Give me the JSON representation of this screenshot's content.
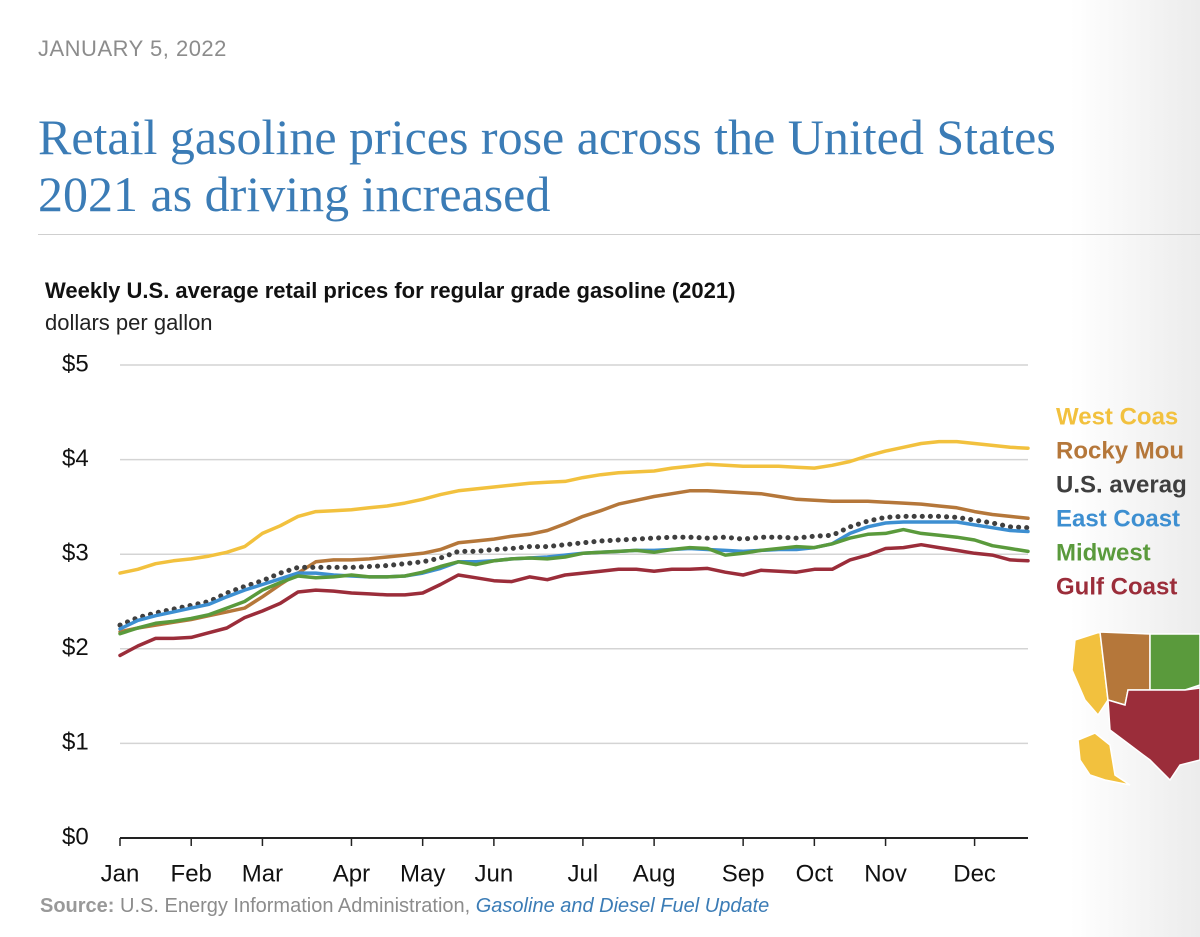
{
  "header": {
    "date": "JANUARY 5, 2022",
    "title_lines": [
      "Retail gasoline prices rose across the United States",
      "2021 as driving increased"
    ]
  },
  "chart_data": {
    "type": "line",
    "title": "Weekly U.S. average retail prices for regular grade gasoline (2021)",
    "subtitle": "dollars per gallon",
    "categories": [
      "Jan",
      null,
      null,
      null,
      "Feb",
      null,
      null,
      null,
      "Mar",
      null,
      null,
      null,
      null,
      "Apr",
      null,
      null,
      null,
      "May",
      null,
      null,
      null,
      "Jun",
      null,
      null,
      null,
      null,
      "Jul",
      null,
      null,
      null,
      "Aug",
      null,
      null,
      null,
      null,
      "Sep",
      null,
      null,
      null,
      "Oct",
      null,
      null,
      null,
      "Nov",
      null,
      null,
      null,
      null,
      "Dec",
      null,
      null,
      null
    ],
    "ylim": [
      0,
      5
    ],
    "yticks": [
      {
        "value": 0,
        "label": "$0"
      },
      {
        "value": 1,
        "label": "$1"
      },
      {
        "value": 2,
        "label": "$2"
      },
      {
        "value": 3,
        "label": "$3"
      },
      {
        "value": 4,
        "label": "$4"
      },
      {
        "value": 5,
        "label": "$5"
      }
    ],
    "grid": true,
    "series": [
      {
        "name": "West Coas",
        "color": "#f2c13e",
        "values": [
          2.8,
          2.84,
          2.9,
          2.93,
          2.95,
          2.98,
          3.02,
          3.08,
          3.22,
          3.3,
          3.4,
          3.45,
          3.46,
          3.47,
          3.49,
          3.51,
          3.54,
          3.58,
          3.63,
          3.67,
          3.69,
          3.71,
          3.73,
          3.75,
          3.76,
          3.77,
          3.81,
          3.84,
          3.86,
          3.87,
          3.88,
          3.91,
          3.93,
          3.95,
          3.94,
          3.93,
          3.93,
          3.93,
          3.92,
          3.91,
          3.94,
          3.98,
          4.04,
          4.09,
          4.13,
          4.17,
          4.19,
          4.19,
          4.17,
          4.15,
          4.13,
          4.12
        ]
      },
      {
        "name": "Rocky Mou",
        "color": "#b5773a",
        "values": [
          2.18,
          2.22,
          2.25,
          2.28,
          2.31,
          2.35,
          2.39,
          2.43,
          2.55,
          2.68,
          2.8,
          2.92,
          2.94,
          2.94,
          2.95,
          2.97,
          2.99,
          3.01,
          3.05,
          3.12,
          3.14,
          3.16,
          3.19,
          3.21,
          3.25,
          3.32,
          3.4,
          3.46,
          3.53,
          3.57,
          3.61,
          3.64,
          3.67,
          3.67,
          3.66,
          3.65,
          3.64,
          3.61,
          3.58,
          3.57,
          3.56,
          3.56,
          3.56,
          3.55,
          3.54,
          3.53,
          3.51,
          3.49,
          3.45,
          3.42,
          3.4,
          3.38
        ]
      },
      {
        "name": "U.S. averag",
        "color": "#3f3f3f",
        "dashed": true,
        "values": [
          2.25,
          2.33,
          2.38,
          2.42,
          2.46,
          2.5,
          2.59,
          2.66,
          2.72,
          2.8,
          2.86,
          2.86,
          2.86,
          2.86,
          2.87,
          2.88,
          2.9,
          2.92,
          2.96,
          3.03,
          3.03,
          3.05,
          3.06,
          3.08,
          3.08,
          3.1,
          3.12,
          3.14,
          3.15,
          3.16,
          3.17,
          3.18,
          3.18,
          3.17,
          3.18,
          3.16,
          3.18,
          3.18,
          3.17,
          3.19,
          3.2,
          3.29,
          3.35,
          3.39,
          3.4,
          3.4,
          3.4,
          3.39,
          3.36,
          3.33,
          3.29,
          3.28
        ]
      },
      {
        "name": "East Coast",
        "color": "#3d8fd1",
        "values": [
          2.21,
          2.3,
          2.35,
          2.39,
          2.43,
          2.47,
          2.55,
          2.62,
          2.68,
          2.74,
          2.8,
          2.8,
          2.78,
          2.77,
          2.76,
          2.76,
          2.77,
          2.8,
          2.85,
          2.92,
          2.92,
          2.93,
          2.95,
          2.96,
          2.97,
          2.99,
          3.01,
          3.02,
          3.03,
          3.04,
          3.04,
          3.05,
          3.06,
          3.05,
          3.04,
          3.03,
          3.04,
          3.05,
          3.05,
          3.07,
          3.11,
          3.22,
          3.29,
          3.33,
          3.34,
          3.34,
          3.34,
          3.34,
          3.31,
          3.28,
          3.25,
          3.24
        ]
      },
      {
        "name": "Midwest",
        "color": "#5a9a3c",
        "values": [
          2.16,
          2.22,
          2.27,
          2.29,
          2.32,
          2.36,
          2.43,
          2.5,
          2.62,
          2.7,
          2.77,
          2.75,
          2.76,
          2.78,
          2.76,
          2.76,
          2.77,
          2.81,
          2.87,
          2.92,
          2.89,
          2.93,
          2.95,
          2.96,
          2.95,
          2.97,
          3.01,
          3.02,
          3.03,
          3.04,
          3.02,
          3.05,
          3.07,
          3.06,
          2.99,
          3.01,
          3.04,
          3.06,
          3.08,
          3.07,
          3.11,
          3.17,
          3.21,
          3.22,
          3.26,
          3.22,
          3.2,
          3.18,
          3.15,
          3.09,
          3.06,
          3.03
        ]
      },
      {
        "name": "Gulf Coast",
        "color": "#9b2d3a",
        "values": [
          1.93,
          2.03,
          2.11,
          2.11,
          2.12,
          2.17,
          2.22,
          2.33,
          2.4,
          2.48,
          2.6,
          2.62,
          2.61,
          2.59,
          2.58,
          2.57,
          2.57,
          2.59,
          2.68,
          2.78,
          2.75,
          2.72,
          2.71,
          2.76,
          2.73,
          2.78,
          2.8,
          2.82,
          2.84,
          2.84,
          2.82,
          2.84,
          2.84,
          2.85,
          2.81,
          2.78,
          2.83,
          2.82,
          2.81,
          2.84,
          2.84,
          2.94,
          2.99,
          3.06,
          3.07,
          3.1,
          3.07,
          3.04,
          3.01,
          2.99,
          2.94,
          2.93
        ]
      }
    ]
  },
  "source": {
    "label": "Source:",
    "text": "U.S. Energy Information Administration,",
    "link": "Gasoline and Diesel Fuel Update"
  }
}
